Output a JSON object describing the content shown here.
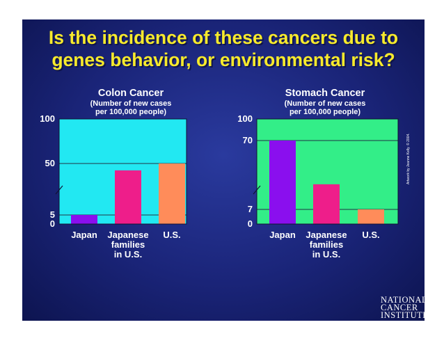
{
  "slide_title_line1": "Is the incidence of these cancers due to",
  "slide_title_line2": "genes behavior, or environmental risk?",
  "credit": "Artwork by Jeanne Kelly. © 2004.",
  "logo": {
    "line1": "NATIONAL",
    "line2": "CANCER",
    "line3": "INSTITUTE"
  },
  "colors": {
    "background": "#1a2478",
    "title": "#f7ea2c",
    "colon_plot_bg": "#22e8f2",
    "stomach_plot_bg": "#33ee88",
    "japan": "#8a0fee",
    "japanese_families": "#ee1e8a",
    "us": "#ff8c5a"
  },
  "chart_data": [
    {
      "type": "bar",
      "title": "Colon Cancer",
      "subtitle_line1": "(Number of new cases",
      "subtitle_line2": "per 100,000 people)",
      "categories": [
        [
          "Japan"
        ],
        [
          "Japanese",
          "families",
          "in U.S."
        ],
        [
          "U.S."
        ]
      ],
      "values": [
        5,
        44,
        50
      ],
      "y_ticks": [
        "100",
        "50",
        "5",
        "0"
      ],
      "ylim": [
        0,
        100
      ],
      "axis_break": true,
      "grid": true
    },
    {
      "type": "bar",
      "title": "Stomach Cancer",
      "subtitle_line1": "(Number of new cases",
      "subtitle_line2": "per 100,000 people)",
      "categories": [
        [
          "Japan"
        ],
        [
          "Japanese",
          "families",
          "in U.S."
        ],
        [
          "U.S."
        ]
      ],
      "values": [
        70,
        30,
        7
      ],
      "y_ticks": [
        "100",
        "70",
        "7",
        "0"
      ],
      "ylim": [
        0,
        100
      ],
      "axis_break": true,
      "grid": true
    }
  ]
}
